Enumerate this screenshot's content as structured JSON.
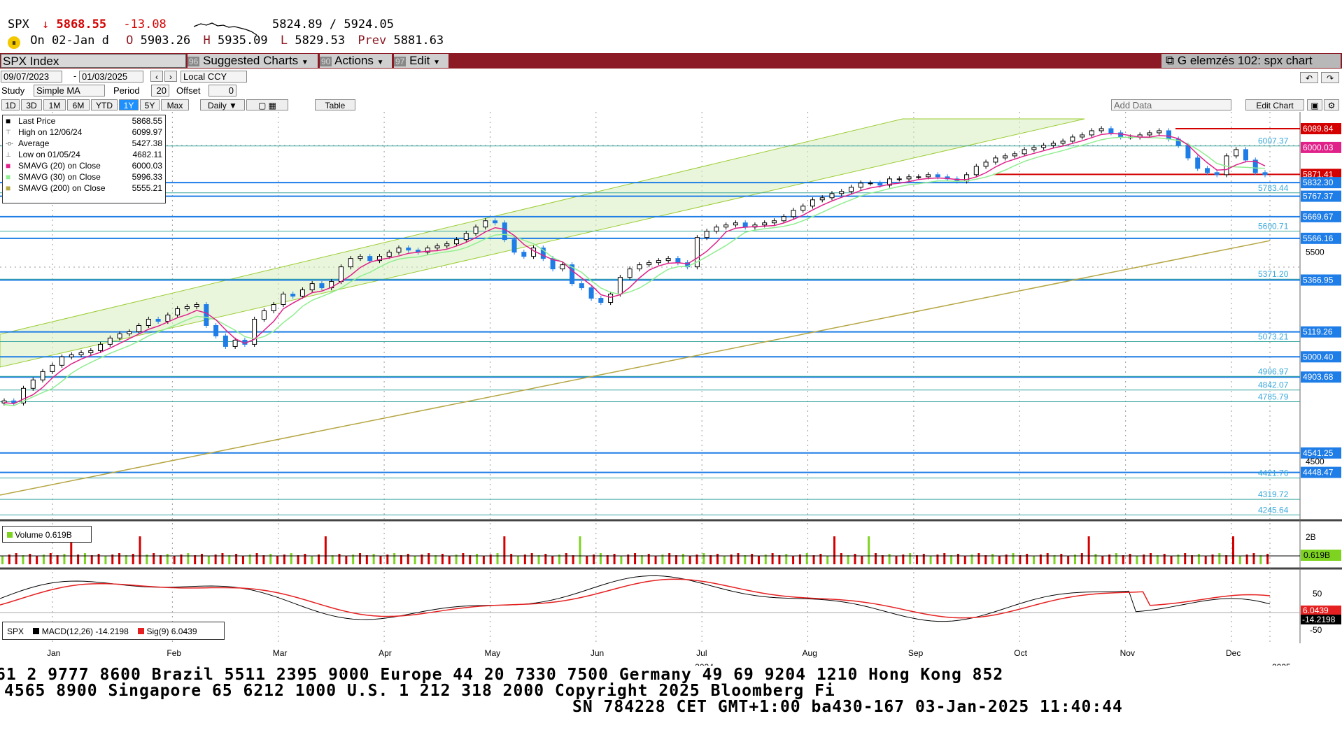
{
  "header": {
    "ticker": "SPX",
    "arrow": "↓",
    "last": "5868.55",
    "change": "-13.08",
    "range": "5824.89 / 5924.05",
    "date_label": "On 02-Jan d",
    "open_label": "O",
    "open": "5903.26",
    "high_label": "H",
    "high": "5935.09",
    "low_label": "L",
    "low": "5829.53",
    "prev_label": "Prev",
    "prev": "5881.63"
  },
  "toolbar": {
    "security": "SPX Index",
    "suggested": "Suggested Charts",
    "suggested_num": "96",
    "actions": "Actions",
    "actions_num": "90",
    "edit": "Edit",
    "edit_num": "97",
    "title": "G elemzés 102: spx chart"
  },
  "controls": {
    "date_from": "09/07/2023",
    "date_to": "01/03/2025",
    "currency": "Local CCY",
    "study_label": "Study",
    "study_value": "Simple MA",
    "period_label": "Period",
    "period_value": "20",
    "offset_label": "Offset",
    "offset_value": "0",
    "ranges": [
      "1D",
      "3D",
      "1M",
      "6M",
      "YTD",
      "1Y",
      "5Y",
      "Max"
    ],
    "active_range": "1Y",
    "interval": "Daily",
    "table": "Table",
    "add_data": "Add Data",
    "edit_chart": "Edit Chart"
  },
  "legend": {
    "rows": [
      {
        "label": "Last Price",
        "value": "5868.55"
      },
      {
        "label": "High on 12/06/24",
        "value": "6099.97"
      },
      {
        "label": "Average",
        "value": "5427.38"
      },
      {
        "label": "Low on 01/05/24",
        "value": "4682.11"
      },
      {
        "label": "SMAVG (20)  on Close",
        "value": "6000.03"
      },
      {
        "label": "SMAVG (30)  on Close",
        "value": "5996.33"
      },
      {
        "label": "SMAVG (200)  on Close",
        "value": "5555.21"
      }
    ],
    "volume": "Volume 0.619B",
    "macd_ticker": "SPX",
    "macd": "MACD(12,26) -14.2198",
    "sig": "Sig(9) 6.0439"
  },
  "colors": {
    "up": "#000000",
    "down": "#1e7de6",
    "sma20": "#e0218a",
    "sma30": "#90ee90",
    "sma200": "#b5a642",
    "channel": "#d9eec0",
    "support": "#1e7de6",
    "resistance": "#d40000",
    "toolbar_red": "#8b1a24",
    "header_red": "#d40000"
  },
  "chart_data": {
    "type": "candlestick",
    "x_ticks": [
      "Jan",
      "Feb",
      "Mar",
      "Apr",
      "May",
      "Jun",
      "Jul",
      "Aug",
      "Sep",
      "Oct",
      "Nov",
      "Dec"
    ],
    "year_labels": [
      "2024",
      "2025"
    ],
    "y_axis_ticks": [
      "5500",
      "4500"
    ],
    "ylim": [
      4220,
      6170
    ],
    "price_levels_boxed": [
      {
        "value": "6089.84",
        "kind": "resistance"
      },
      {
        "value": "6000.03",
        "kind": "sma20"
      },
      {
        "value": "5871.41",
        "kind": "resistance"
      },
      {
        "value": "5832.30",
        "kind": "support"
      },
      {
        "value": "5767.37",
        "kind": "support"
      },
      {
        "value": "5669.67",
        "kind": "support"
      },
      {
        "value": "5566.16",
        "kind": "support"
      },
      {
        "value": "5366.95",
        "kind": "support"
      },
      {
        "value": "5119.26",
        "kind": "support"
      },
      {
        "value": "5000.40",
        "kind": "support"
      },
      {
        "value": "4903.68",
        "kind": "support"
      },
      {
        "value": "4541.25",
        "kind": "support"
      },
      {
        "value": "4448.47",
        "kind": "support"
      }
    ],
    "fib_labels": [
      "6007.37",
      "5783.44",
      "5600.71",
      "5371.20",
      "5073.21",
      "4906.97",
      "4842.07",
      "4785.79",
      "4421.76",
      "4319.72",
      "4245.64"
    ],
    "close_series": [
      4790,
      4780,
      4850,
      4890,
      4930,
      4960,
      5000,
      5010,
      5020,
      5030,
      5060,
      5090,
      5110,
      5120,
      5150,
      5180,
      5170,
      5200,
      5230,
      5240,
      5250,
      5150,
      5100,
      5050,
      5080,
      5060,
      5180,
      5220,
      5250,
      5300,
      5290,
      5320,
      5350,
      5330,
      5360,
      5430,
      5470,
      5480,
      5460,
      5480,
      5500,
      5520,
      5510,
      5500,
      5520,
      5530,
      5540,
      5560,
      5590,
      5620,
      5650,
      5640,
      5560,
      5500,
      5480,
      5520,
      5470,
      5420,
      5440,
      5350,
      5330,
      5280,
      5260,
      5300,
      5380,
      5420,
      5440,
      5450,
      5460,
      5470,
      5450,
      5430,
      5570,
      5600,
      5620,
      5630,
      5640,
      5620,
      5630,
      5640,
      5650,
      5670,
      5700,
      5720,
      5750,
      5760,
      5780,
      5790,
      5810,
      5830,
      5830,
      5820,
      5850,
      5850,
      5860,
      5860,
      5870,
      5860,
      5850,
      5840,
      5870,
      5910,
      5930,
      5950,
      5960,
      5970,
      5990,
      6000,
      6010,
      6020,
      6030,
      6050,
      6060,
      6080,
      6090,
      6070,
      6050,
      6050,
      6060,
      6070,
      6080,
      6040,
      6010,
      5950,
      5900,
      5880,
      5870,
      5960,
      5990,
      5940,
      5880,
      5870
    ],
    "sma20_value": "6000.03",
    "sma30_value": "5996.33",
    "sma200_value": "5555.21",
    "volume_axis": [
      "2B",
      "0.619B"
    ],
    "macd_axis": [
      "50",
      "-50"
    ],
    "macd_values": {
      "macd": "-14.2198",
      "signal": "6.0439"
    }
  },
  "footer": {
    "line1": "61 2 9777 8600 Brazil 5511 2395 9000 Europe 44 20 7330 7500 Germany 49 69 9204 1210 Hong Kong 852",
    "line2": "4565 8900        Singapore 65 6212 1000        U.S. 1 212 318 2000        Copyright 2025 Bloomberg Fi",
    "line3": "SN 784228 CET  GMT+1:00 ba430-167 03-Jan-2025 11:40:44"
  }
}
